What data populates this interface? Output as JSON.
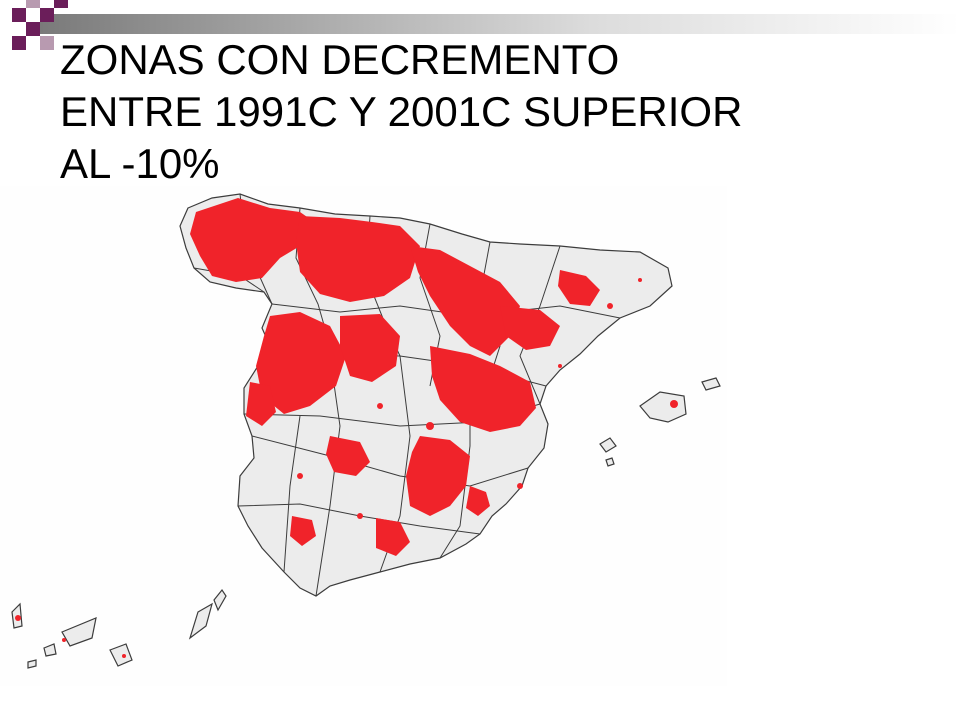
{
  "slide": {
    "title_line1": "ZONAS CON DECREMENTO",
    "title_line2": "ENTRE 1991C Y 2001C SUPERIOR",
    "title_line3": "AL -10%"
  },
  "map": {
    "subject": "Spain provinces map",
    "colors": {
      "land": "#ececec",
      "border": "#3c3c3c",
      "highlight": "#f0232a",
      "accent": "#6b1e5a"
    }
  }
}
